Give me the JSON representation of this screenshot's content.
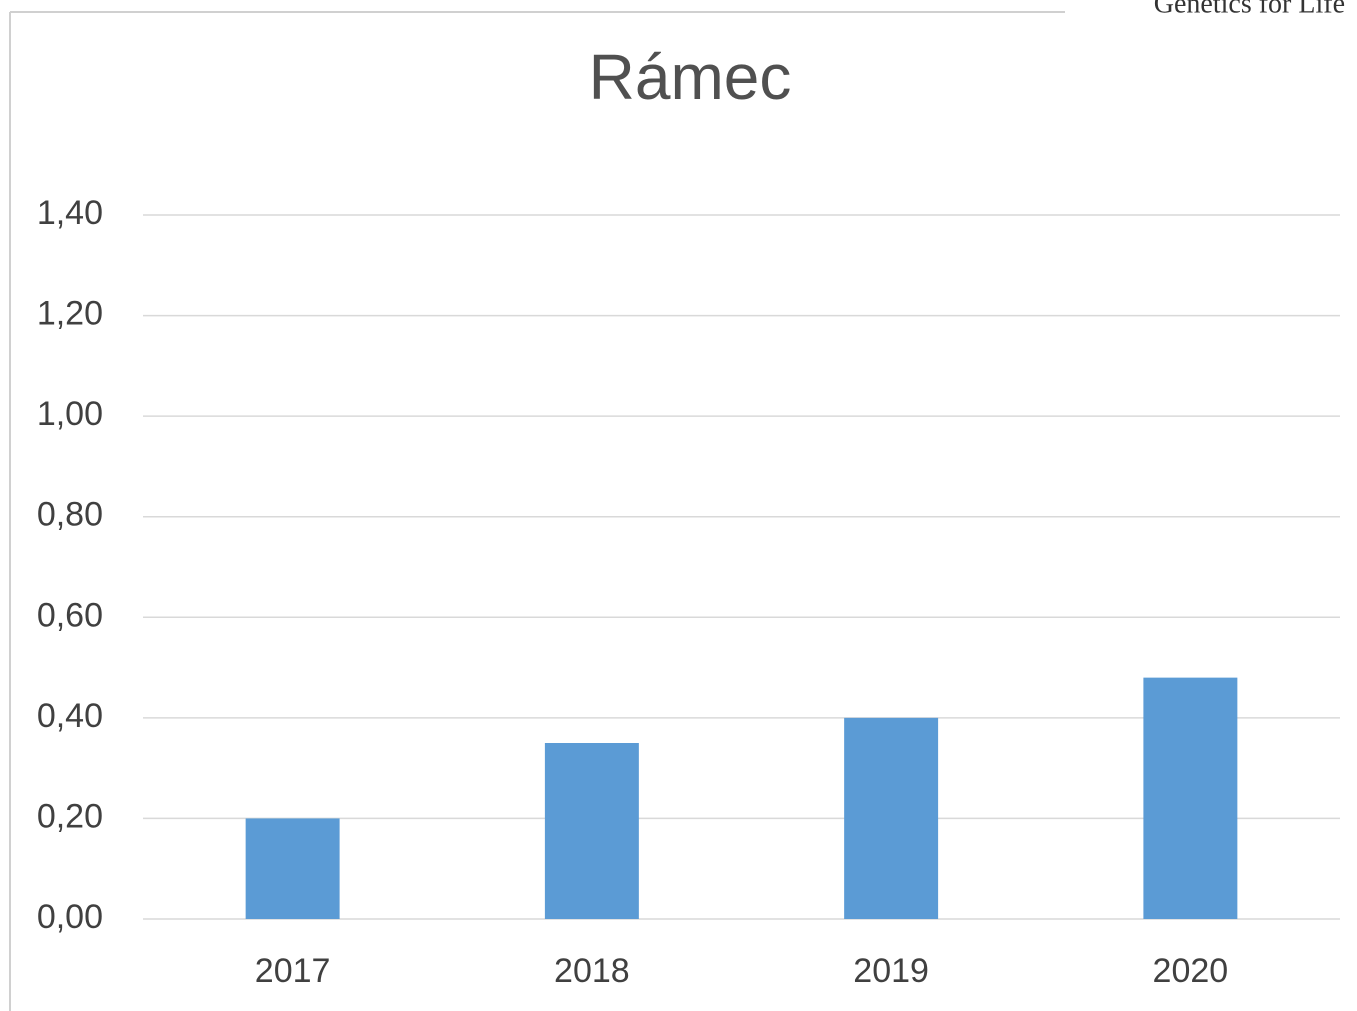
{
  "chart_data": {
    "type": "bar",
    "title": "Rámec",
    "annotations": [
      "Genetics for Life"
    ],
    "categories": [
      "2017",
      "2018",
      "2019",
      "2020"
    ],
    "values": [
      0.2,
      0.35,
      0.4,
      0.48
    ],
    "color": "#5b9bd5",
    "ylim": [
      0,
      1.4
    ],
    "yticks": [
      {
        "value": 0,
        "label": "0,00"
      },
      {
        "value": 0.2,
        "label": "0,20"
      },
      {
        "value": 0.4,
        "label": "0,40"
      },
      {
        "value": 0.6,
        "label": "0,60"
      },
      {
        "value": 0.8,
        "label": "0,80"
      },
      {
        "value": 1.0,
        "label": "1,00"
      },
      {
        "value": 1.2,
        "label": "1,20"
      },
      {
        "value": 1.4,
        "label": "1,40"
      }
    ],
    "grid": true
  }
}
